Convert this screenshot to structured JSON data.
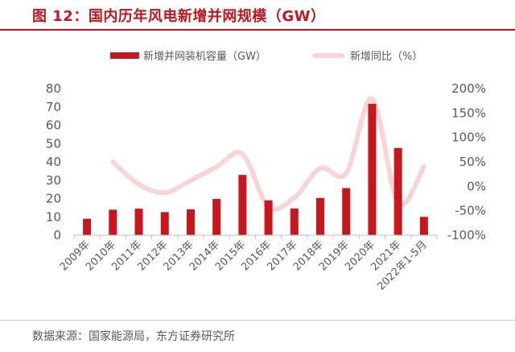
{
  "header": {
    "title": "图 12：国内历年风电新增并网规模（GW）"
  },
  "footer": {
    "source": "数据来源：国家能源局，东方证券研究所"
  },
  "colors": {
    "bar": "#c8161d",
    "line": "#f8d4d4",
    "title": "#c0161f"
  },
  "chart_data": {
    "type": "bar",
    "categories": [
      "2009年",
      "2010年",
      "2011年",
      "2012年",
      "2013年",
      "2014年",
      "2015年",
      "2016年",
      "2017年",
      "2018年",
      "2019年",
      "2020年",
      "2021年",
      "2022年1-5月"
    ],
    "series": [
      {
        "name": "新增并网装机容量（GW）",
        "type": "bar",
        "axis": "left",
        "values": [
          9.0,
          13.9,
          14.5,
          12.6,
          14.1,
          19.8,
          32.9,
          19.0,
          14.6,
          20.3,
          25.7,
          71.7,
          47.6,
          10.0
        ]
      },
      {
        "name": "新增同比（%）",
        "type": "line",
        "axis": "right",
        "values": [
          null,
          50,
          4,
          -13,
          12,
          40,
          66,
          -42,
          -23,
          37,
          27,
          179,
          -34,
          40
        ]
      }
    ],
    "y_left": {
      "min": 0,
      "max": 80,
      "ticks": [
        "0",
        "10",
        "20",
        "30",
        "40",
        "50",
        "60",
        "70",
        "80"
      ]
    },
    "y_right": {
      "min": -100,
      "max": 200,
      "ticks": [
        "-100%",
        "-50%",
        "0%",
        "50%",
        "100%",
        "150%",
        "200%"
      ]
    },
    "legend_position": "top",
    "grid": false
  }
}
